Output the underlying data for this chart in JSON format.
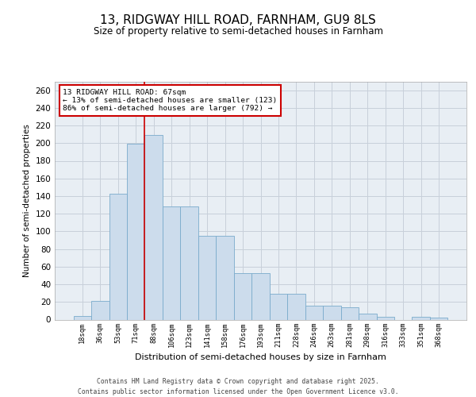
{
  "title1": "13, RIDGWAY HILL ROAD, FARNHAM, GU9 8LS",
  "title2": "Size of property relative to semi-detached houses in Farnham",
  "xlabel": "Distribution of semi-detached houses by size in Farnham",
  "ylabel": "Number of semi-detached properties",
  "categories": [
    "18sqm",
    "36sqm",
    "53sqm",
    "71sqm",
    "88sqm",
    "106sqm",
    "123sqm",
    "141sqm",
    "158sqm",
    "176sqm",
    "193sqm",
    "211sqm",
    "228sqm",
    "246sqm",
    "263sqm",
    "281sqm",
    "298sqm",
    "316sqm",
    "333sqm",
    "351sqm",
    "368sqm"
  ],
  "bar_values": [
    4,
    21,
    143,
    199,
    209,
    128,
    128,
    95,
    95,
    53,
    53,
    29,
    29,
    16,
    16,
    14,
    7,
    3,
    0,
    3,
    2
  ],
  "property_line_x": 3.5,
  "bar_color": "#ccdcec",
  "bar_edge_color": "#7aabcc",
  "line_color": "#cc0000",
  "annotation_line1": "13 RIDGWAY HILL ROAD: 67sqm",
  "annotation_line2": "← 13% of semi-detached houses are smaller (123)",
  "annotation_line3": "86% of semi-detached houses are larger (792) →",
  "footer1": "Contains HM Land Registry data © Crown copyright and database right 2025.",
  "footer2": "Contains public sector information licensed under the Open Government Licence v3.0.",
  "ylim": [
    0,
    270
  ],
  "yticks": [
    0,
    20,
    40,
    60,
    80,
    100,
    120,
    140,
    160,
    180,
    200,
    220,
    240,
    260
  ],
  "grid_color": "#c8d0da",
  "bg_color": "#e8eef4"
}
